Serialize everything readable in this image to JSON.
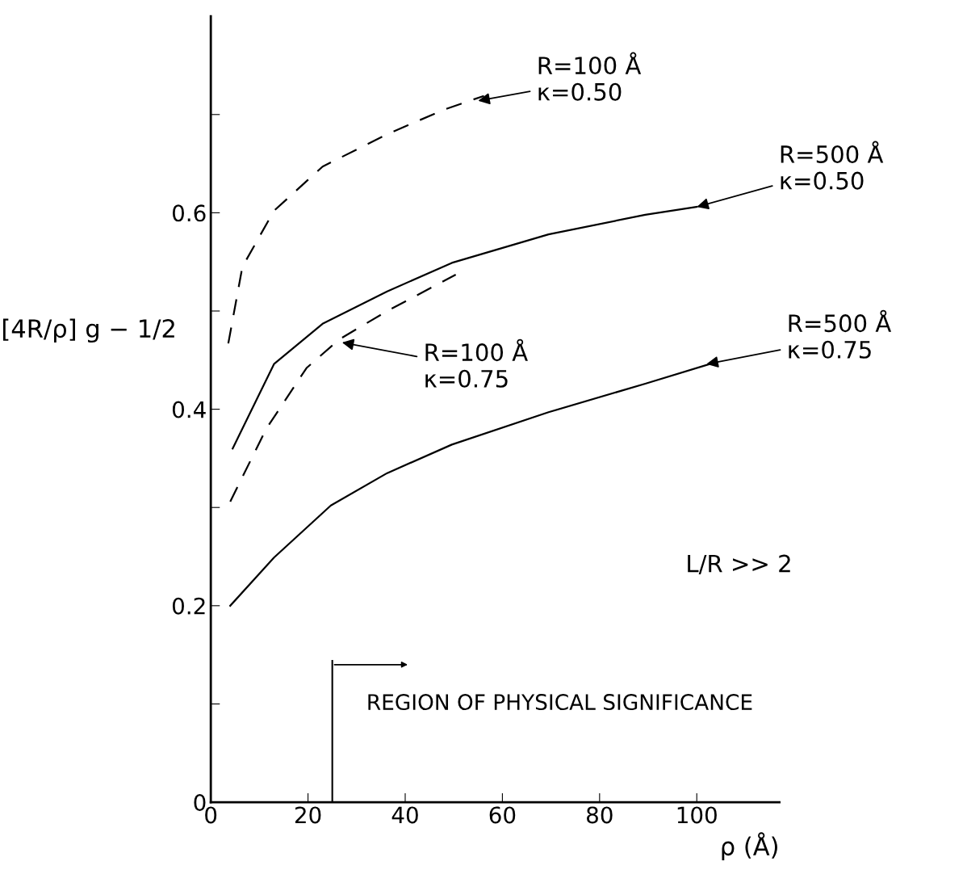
{
  "chart_data": {
    "type": "line",
    "xlabel": "ρ (Å)",
    "ylabel": "[4R/ρ] g − 1/2",
    "xlim": [
      0,
      117
    ],
    "ylim": [
      0,
      0.8
    ],
    "xticks": [
      0,
      20,
      40,
      60,
      80,
      100
    ],
    "yticks": [
      0,
      {
        "value": 0.1,
        "label": null
      },
      0.2,
      {
        "value": 0.3,
        "label": null
      },
      0.4,
      {
        "value": 0.5,
        "label": null
      },
      0.6,
      {
        "value": 0.7,
        "label": null
      }
    ],
    "grid": false,
    "legend": false,
    "marker": "none",
    "series": [
      {
        "color": "#000000",
        "line_style": "dashed",
        "x": [
          3.6,
          6.5,
          13,
          23,
          36.3,
          48,
          56.2
        ],
        "values": [
          0.467,
          0.545,
          0.602,
          0.647,
          0.68,
          0.705,
          0.719
        ]
      },
      {
        "color": "#000000",
        "line_style": "solid",
        "x": [
          4.5,
          13,
          23,
          36.3,
          49.6,
          69.5,
          89.4,
          100
        ],
        "values": [
          0.36,
          0.446,
          0.487,
          0.52,
          0.549,
          0.578,
          0.598,
          0.606
        ]
      },
      {
        "color": "#000000",
        "line_style": "dashed",
        "x": [
          4,
          11.4,
          19.7,
          26.4,
          36.3,
          50.4
        ],
        "values": [
          0.306,
          0.38,
          0.442,
          0.471,
          0.5,
          0.537
        ]
      },
      {
        "color": "#000000",
        "line_style": "solid",
        "x": [
          4,
          13,
          24.7,
          36.3,
          49.6,
          69.5,
          89.4,
          104
        ],
        "values": [
          0.2,
          0.249,
          0.302,
          0.335,
          0.364,
          0.397,
          0.426,
          0.448
        ]
      }
    ],
    "annotations": [
      {
        "text": "R=100 Å\nκ=0.50",
        "x": 55,
        "y": 0.714
      },
      {
        "text": "R=500 Å\nκ=0.50",
        "x": 100,
        "y": 0.606
      },
      {
        "text": "R=100 Å\nκ=0.75",
        "x": 27,
        "y": 0.468
      },
      {
        "text": "R=500 Å\nκ=0.75",
        "x": 102,
        "y": 0.446
      },
      "L/R >> 2"
    ],
    "ref_lines": [
      {
        "axis": "x",
        "value": 25,
        "label": "REGION OF PHYSICAL SIGNIFICANCE",
        "color": "#000000"
      }
    ]
  }
}
